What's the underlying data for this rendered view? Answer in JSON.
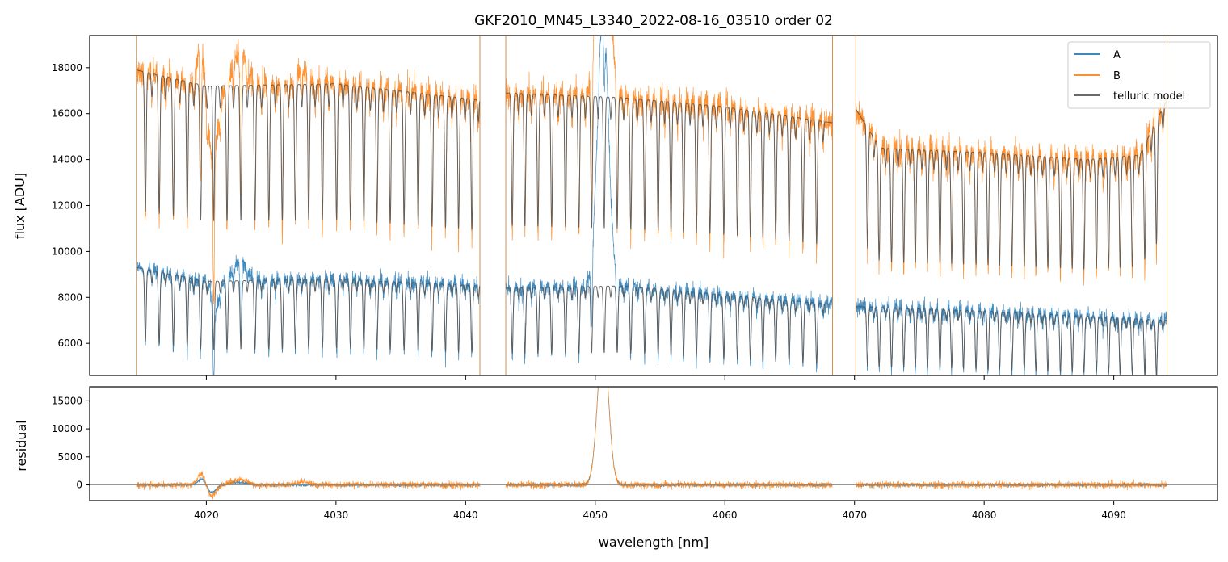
{
  "chart_data": [
    {
      "type": "line",
      "panel": "flux",
      "title": "GKF2010_MN45_L3340_2022-08-16_03510  order 02",
      "xlabel": "",
      "ylabel": "flux [ADU]",
      "xlim": [
        4011,
        4098
      ],
      "ylim": [
        4600,
        19400
      ],
      "yticks": [
        6000,
        8000,
        10000,
        12000,
        14000,
        16000,
        18000
      ],
      "xticks": [
        4020,
        4030,
        4040,
        4050,
        4060,
        4070,
        4080,
        4090
      ],
      "grid": false,
      "legend": "upper-right",
      "segments": [
        [
          4014.6,
          4041.1
        ],
        [
          4043.1,
          4068.3
        ],
        [
          4070.1,
          4094.1
        ]
      ],
      "series": [
        {
          "name": "A",
          "color": "#1f77b4",
          "continuum": [
            [
              4014.6,
              9300
            ],
            [
              4020,
              8700
            ],
            [
              4030,
              8800
            ],
            [
              4041,
              8500
            ],
            [
              4043.1,
              8400
            ],
            [
              4052,
              8500
            ],
            [
              4060,
              8100
            ],
            [
              4068.3,
              7700
            ],
            [
              4070.1,
              7600
            ],
            [
              4080,
              7400
            ],
            [
              4094,
              7000
            ]
          ],
          "line_depth_fraction": 0.4,
          "noise": 300,
          "features": [
            [
              4020.2,
              1100,
              0.25
            ],
            [
              4020.5,
              -1700,
              0.35
            ],
            [
              4022.6,
              900,
              0.5
            ],
            [
              4050.6,
              12000,
              0.42
            ]
          ]
        },
        {
          "name": "B",
          "color": "#ff7f0e",
          "continuum": [
            [
              4014.6,
              17900
            ],
            [
              4020,
              17200
            ],
            [
              4030,
              17300
            ],
            [
              4041,
              16600
            ],
            [
              4043.1,
              16900
            ],
            [
              4052,
              16700
            ],
            [
              4060,
              16300
            ],
            [
              4068.3,
              15600
            ],
            [
              4070.1,
              16200
            ],
            [
              4072,
              14500
            ],
            [
              4080,
              14300
            ],
            [
              4088,
              14000
            ],
            [
              4092,
              14200
            ],
            [
              4094,
              16500
            ]
          ],
          "line_depth_fraction": 0.4,
          "noise": 500,
          "features": [
            [
              4019.6,
              2200,
              0.25
            ],
            [
              4020.5,
              -3000,
              0.4
            ],
            [
              4022.6,
              1500,
              0.5
            ],
            [
              4027.5,
              600,
              0.4
            ],
            [
              4050.6,
              14000,
              0.42
            ]
          ]
        },
        {
          "name": "telluric model",
          "color": "#555555",
          "line_depth_fraction": 0.4
        }
      ]
    },
    {
      "type": "line",
      "panel": "residual",
      "title": "",
      "xlabel": "wavelength [nm]",
      "ylabel": "residual",
      "xlim": [
        4011,
        4098
      ],
      "ylim": [
        -2800,
        17500
      ],
      "yticks": [
        0,
        5000,
        10000,
        15000
      ],
      "xticks": [
        4020,
        4030,
        4040,
        4050,
        4060,
        4070,
        4080,
        4090
      ],
      "zero_line": true,
      "series": [
        {
          "name": "A",
          "color": "#1f77b4",
          "noise": 250,
          "features": [
            [
              4019.7,
              1200,
              0.3
            ],
            [
              4020.4,
              -1400,
              0.35
            ],
            [
              4022.5,
              500,
              0.6
            ],
            [
              4050.6,
              26000,
              0.42
            ]
          ]
        },
        {
          "name": "B",
          "color": "#ff7f0e",
          "noise": 450,
          "features": [
            [
              4019.6,
              2000,
              0.3
            ],
            [
              4020.4,
              -2000,
              0.35
            ],
            [
              4022.6,
              900,
              0.6
            ],
            [
              4027.5,
              600,
              0.4
            ],
            [
              4050.6,
              26000,
              0.42
            ]
          ]
        }
      ]
    }
  ]
}
